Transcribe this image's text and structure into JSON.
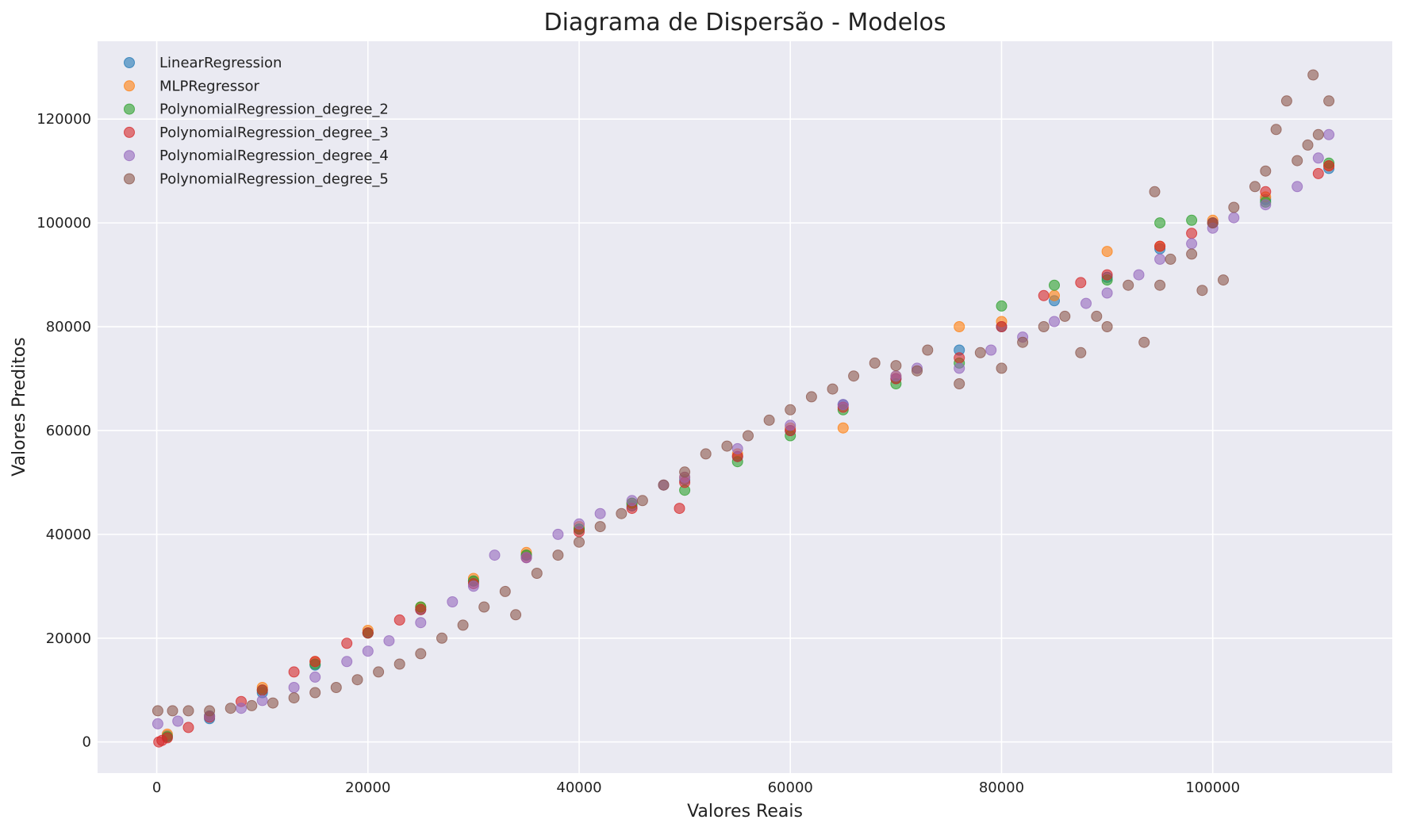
{
  "chart_data": {
    "type": "scatter",
    "title": "Diagrama de Dispersão - Modelos",
    "xlabel": "Valores Reais",
    "ylabel": "Valores Preditos",
    "xlim": [
      -5600,
      117000
    ],
    "ylim": [
      -6000,
      135000
    ],
    "xticks": [
      0,
      20000,
      40000,
      60000,
      80000,
      100000
    ],
    "yticks": [
      0,
      20000,
      40000,
      60000,
      80000,
      100000,
      120000
    ],
    "xtick_labels": [
      "0",
      "20000",
      "40000",
      "60000",
      "80000",
      "100000"
    ],
    "ytick_labels": [
      "0",
      "20000",
      "40000",
      "60000",
      "80000",
      "100000",
      "120000"
    ],
    "grid": true,
    "legend_position": "top-left",
    "background_color": "#eaeaf2",
    "series": [
      {
        "name": "LinearRegression",
        "color": "#1f77b4",
        "points": [
          [
            1000,
            1200
          ],
          [
            5000,
            4500
          ],
          [
            10000,
            9500
          ],
          [
            15000,
            14800
          ],
          [
            20000,
            21000
          ],
          [
            25000,
            25500
          ],
          [
            30000,
            31000
          ],
          [
            35000,
            36000
          ],
          [
            40000,
            41000
          ],
          [
            45000,
            45500
          ],
          [
            50000,
            50500
          ],
          [
            55000,
            55000
          ],
          [
            60000,
            60000
          ],
          [
            65000,
            65000
          ],
          [
            70000,
            70000
          ],
          [
            76000,
            75500
          ],
          [
            80000,
            80000
          ],
          [
            85000,
            85000
          ],
          [
            90000,
            89500
          ],
          [
            95000,
            95000
          ],
          [
            100000,
            100000
          ],
          [
            105000,
            104500
          ],
          [
            111000,
            110500
          ]
        ]
      },
      {
        "name": "MLPRegressor",
        "color": "#ff7f0e",
        "points": [
          [
            1000,
            1500
          ],
          [
            5000,
            5000
          ],
          [
            10000,
            10500
          ],
          [
            15000,
            15500
          ],
          [
            20000,
            21500
          ],
          [
            25000,
            26000
          ],
          [
            30000,
            31500
          ],
          [
            35000,
            36500
          ],
          [
            40000,
            41500
          ],
          [
            45000,
            46000
          ],
          [
            50000,
            51000
          ],
          [
            55000,
            55500
          ],
          [
            60000,
            60500
          ],
          [
            65000,
            60500
          ],
          [
            70000,
            70500
          ],
          [
            76000,
            80000
          ],
          [
            80000,
            81000
          ],
          [
            85000,
            86000
          ],
          [
            90000,
            94500
          ],
          [
            95000,
            95500
          ],
          [
            100000,
            100500
          ],
          [
            105000,
            105000
          ],
          [
            111000,
            111000
          ]
        ]
      },
      {
        "name": "PolynomialRegression_degree_2",
        "color": "#2ca02c",
        "points": [
          [
            1000,
            1000
          ],
          [
            5000,
            5000
          ],
          [
            10000,
            10000
          ],
          [
            15000,
            15000
          ],
          [
            20000,
            21000
          ],
          [
            25000,
            26000
          ],
          [
            30000,
            31000
          ],
          [
            35000,
            36000
          ],
          [
            40000,
            41000
          ],
          [
            45000,
            46000
          ],
          [
            50000,
            48500
          ],
          [
            55000,
            54000
          ],
          [
            60000,
            59000
          ],
          [
            65000,
            64000
          ],
          [
            70000,
            69000
          ],
          [
            76000,
            73000
          ],
          [
            80000,
            84000
          ],
          [
            85000,
            88000
          ],
          [
            90000,
            89000
          ],
          [
            95000,
            100000
          ],
          [
            98000,
            100500
          ],
          [
            105000,
            104000
          ],
          [
            111000,
            111500
          ]
        ]
      },
      {
        "name": "PolynomialRegression_degree_3",
        "color": "#d62728",
        "points": [
          [
            200,
            0
          ],
          [
            500,
            300
          ],
          [
            1000,
            800
          ],
          [
            3000,
            2800
          ],
          [
            5000,
            4800
          ],
          [
            8000,
            7800
          ],
          [
            10000,
            10000
          ],
          [
            13000,
            13500
          ],
          [
            15000,
            15500
          ],
          [
            18000,
            19000
          ],
          [
            20000,
            21000
          ],
          [
            23000,
            23500
          ],
          [
            25000,
            25500
          ],
          [
            30000,
            30500
          ],
          [
            35000,
            35500
          ],
          [
            40000,
            40500
          ],
          [
            45000,
            45000
          ],
          [
            49500,
            45000
          ],
          [
            50000,
            50000
          ],
          [
            55000,
            55000
          ],
          [
            60000,
            60000
          ],
          [
            65000,
            64500
          ],
          [
            70000,
            70000
          ],
          [
            76000,
            74000
          ],
          [
            80000,
            80000
          ],
          [
            84000,
            86000
          ],
          [
            87500,
            88500
          ],
          [
            90000,
            90000
          ],
          [
            95000,
            95500
          ],
          [
            98000,
            98000
          ],
          [
            100000,
            100000
          ],
          [
            105000,
            106000
          ],
          [
            110000,
            109500
          ],
          [
            111000,
            111000
          ]
        ]
      },
      {
        "name": "PolynomialRegression_degree_4",
        "color": "#9467bd",
        "points": [
          [
            100,
            3500
          ],
          [
            2000,
            4000
          ],
          [
            5000,
            5000
          ],
          [
            8000,
            6500
          ],
          [
            10000,
            8000
          ],
          [
            13000,
            10500
          ],
          [
            15000,
            12500
          ],
          [
            18000,
            15500
          ],
          [
            20000,
            17500
          ],
          [
            22000,
            19500
          ],
          [
            25000,
            23000
          ],
          [
            28000,
            27000
          ],
          [
            30000,
            30000
          ],
          [
            32000,
            36000
          ],
          [
            35000,
            35500
          ],
          [
            38000,
            40000
          ],
          [
            40000,
            42000
          ],
          [
            42000,
            44000
          ],
          [
            45000,
            46500
          ],
          [
            48000,
            49500
          ],
          [
            50000,
            51000
          ],
          [
            55000,
            56500
          ],
          [
            60000,
            61000
          ],
          [
            65000,
            65000
          ],
          [
            70000,
            70500
          ],
          [
            72000,
            72000
          ],
          [
            76000,
            72000
          ],
          [
            79000,
            75500
          ],
          [
            82000,
            78000
          ],
          [
            85000,
            81000
          ],
          [
            88000,
            84500
          ],
          [
            90000,
            86500
          ],
          [
            93000,
            90000
          ],
          [
            95000,
            93000
          ],
          [
            98000,
            96000
          ],
          [
            100000,
            99000
          ],
          [
            102000,
            101000
          ],
          [
            105000,
            103500
          ],
          [
            108000,
            107000
          ],
          [
            110000,
            112500
          ],
          [
            111000,
            117000
          ]
        ]
      },
      {
        "name": "PolynomialRegression_degree_5",
        "color": "#8c564b",
        "points": [
          [
            100,
            6000
          ],
          [
            1500,
            6000
          ],
          [
            3000,
            6000
          ],
          [
            5000,
            6000
          ],
          [
            7000,
            6500
          ],
          [
            9000,
            7000
          ],
          [
            11000,
            7500
          ],
          [
            13000,
            8500
          ],
          [
            15000,
            9500
          ],
          [
            17000,
            10500
          ],
          [
            19000,
            12000
          ],
          [
            21000,
            13500
          ],
          [
            23000,
            15000
          ],
          [
            25000,
            17000
          ],
          [
            27000,
            20000
          ],
          [
            29000,
            22500
          ],
          [
            31000,
            26000
          ],
          [
            33000,
            29000
          ],
          [
            34000,
            24500
          ],
          [
            36000,
            32500
          ],
          [
            38000,
            36000
          ],
          [
            40000,
            38500
          ],
          [
            42000,
            41500
          ],
          [
            44000,
            44000
          ],
          [
            46000,
            46500
          ],
          [
            48000,
            49500
          ],
          [
            50000,
            52000
          ],
          [
            52000,
            55500
          ],
          [
            54000,
            57000
          ],
          [
            56000,
            59000
          ],
          [
            58000,
            62000
          ],
          [
            60000,
            64000
          ],
          [
            62000,
            66500
          ],
          [
            64000,
            68000
          ],
          [
            66000,
            70500
          ],
          [
            68000,
            73000
          ],
          [
            70000,
            72500
          ],
          [
            72000,
            71500
          ],
          [
            73000,
            75500
          ],
          [
            76000,
            69000
          ],
          [
            78000,
            75000
          ],
          [
            80000,
            72000
          ],
          [
            82000,
            77000
          ],
          [
            84000,
            80000
          ],
          [
            86000,
            82000
          ],
          [
            87500,
            75000
          ],
          [
            89000,
            82000
          ],
          [
            90000,
            80000
          ],
          [
            92000,
            88000
          ],
          [
            93500,
            77000
          ],
          [
            94500,
            106000
          ],
          [
            95000,
            88000
          ],
          [
            96000,
            93000
          ],
          [
            98000,
            94000
          ],
          [
            99000,
            87000
          ],
          [
            100000,
            100000
          ],
          [
            101000,
            89000
          ],
          [
            102000,
            103000
          ],
          [
            104000,
            107000
          ],
          [
            105000,
            110000
          ],
          [
            106000,
            118000
          ],
          [
            107000,
            123500
          ],
          [
            108000,
            112000
          ],
          [
            109000,
            115000
          ],
          [
            109500,
            128500
          ],
          [
            110000,
            117000
          ],
          [
            111000,
            123500
          ]
        ]
      }
    ]
  }
}
